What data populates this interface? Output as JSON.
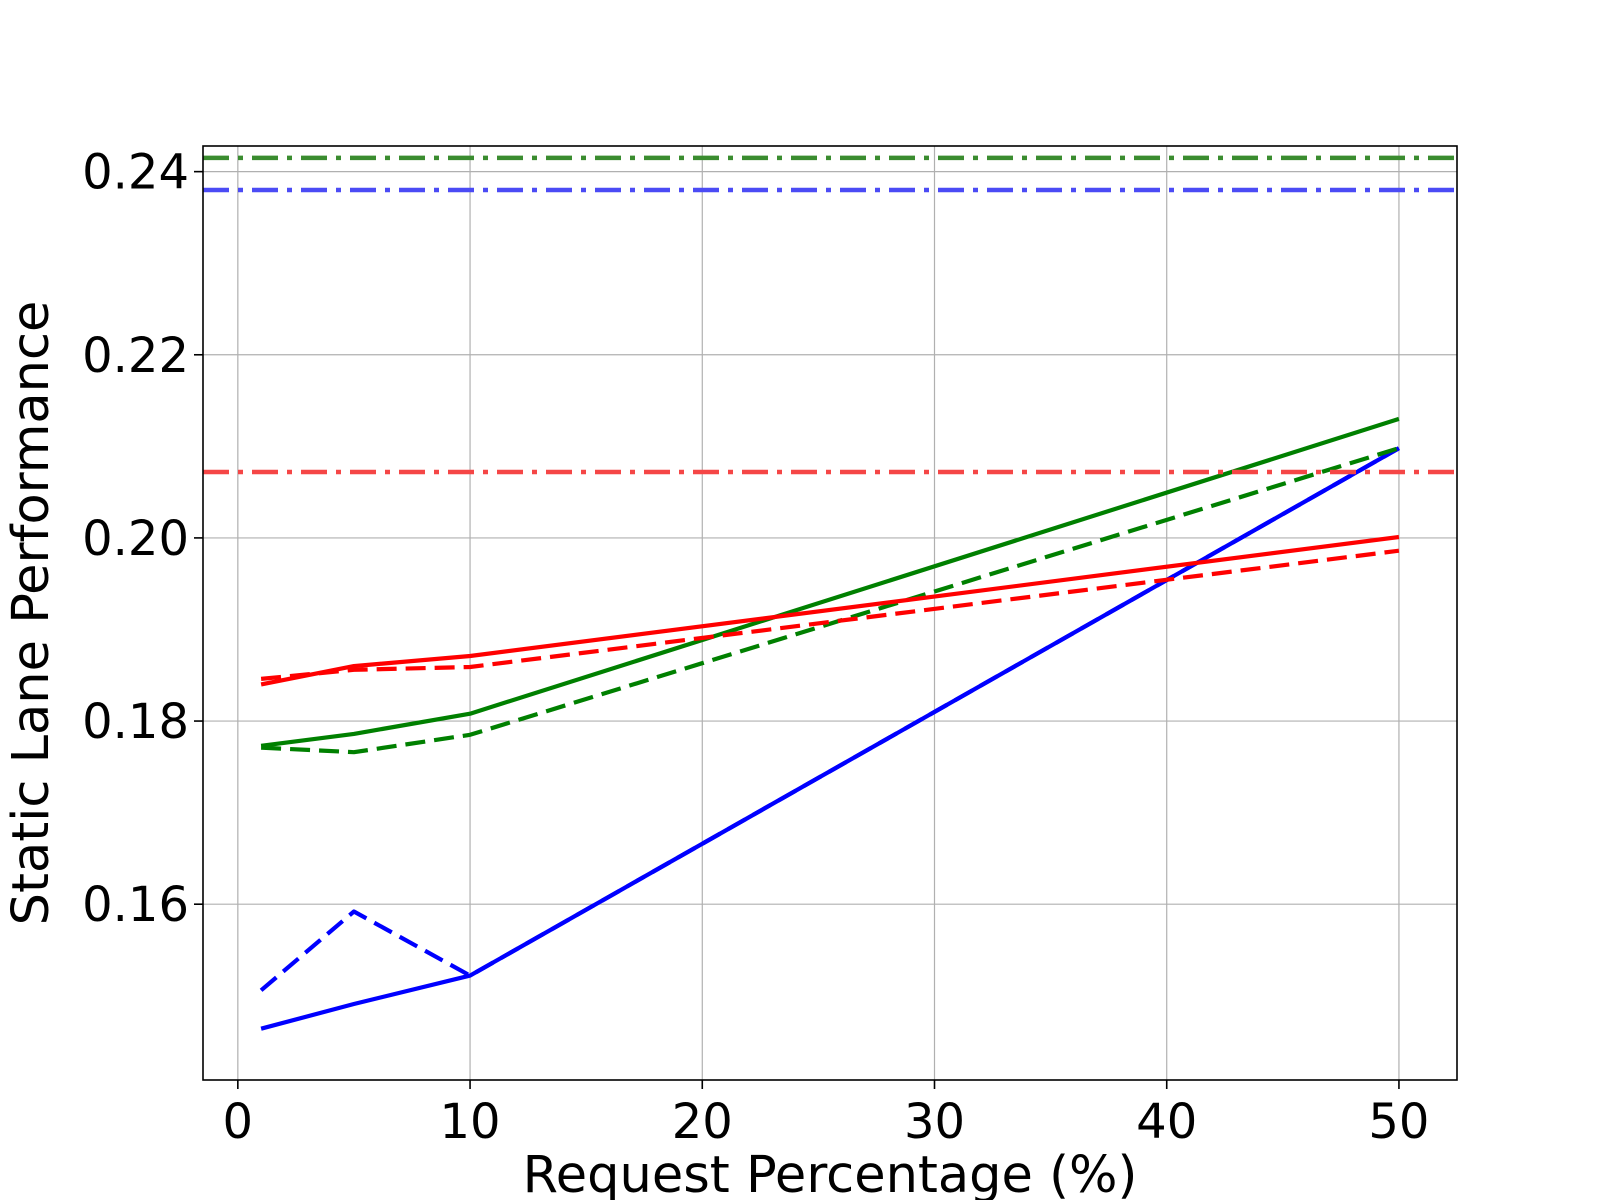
{
  "chart_data": {
    "type": "line",
    "xlabel": "Request Percentage (%)",
    "ylabel": "Static Lane Performance",
    "xlim": [
      -1.5,
      52.5
    ],
    "ylim": [
      0.1408,
      0.2428
    ],
    "xticks": [
      0,
      10,
      20,
      30,
      40,
      50
    ],
    "xtick_labels": [
      "0",
      "10",
      "20",
      "30",
      "40",
      "50"
    ],
    "yticks": [
      0.16,
      0.18,
      0.2,
      0.22,
      0.24
    ],
    "ytick_labels": [
      "0.16",
      "0.18",
      "0.20",
      "0.22",
      "0.24"
    ],
    "grid": true,
    "legend": "none",
    "series": [
      {
        "color": "#0000ff",
        "style": "solid",
        "x": [
          1,
          5,
          10,
          50
        ],
        "y": [
          0.1464,
          0.1491,
          0.1522,
          0.2098
        ]
      },
      {
        "color": "#0000ff",
        "style": "dashed",
        "x": [
          1,
          5,
          10,
          50
        ],
        "y": [
          0.1506,
          0.1592,
          0.1522,
          0.2098
        ]
      },
      {
        "color": "#008000",
        "style": "solid",
        "x": [
          1,
          5,
          10,
          50
        ],
        "y": [
          0.1773,
          0.1786,
          0.1808,
          0.213
        ]
      },
      {
        "color": "#008000",
        "style": "dashed",
        "x": [
          1,
          5,
          10,
          50
        ],
        "y": [
          0.1771,
          0.1766,
          0.1785,
          0.2098
        ]
      },
      {
        "color": "#ff0000",
        "style": "solid",
        "x": [
          1,
          5,
          10,
          50
        ],
        "y": [
          0.184,
          0.186,
          0.1871,
          0.2001
        ]
      },
      {
        "color": "#ff0000",
        "style": "dashed",
        "x": [
          1,
          5,
          10,
          50
        ],
        "y": [
          0.1846,
          0.1856,
          0.1859,
          0.1986
        ]
      },
      {
        "color": "#3a8c2f",
        "style": "dashdot",
        "hline": 0.2415
      },
      {
        "color": "#4b4bf5",
        "style": "dashdot",
        "hline": 0.238
      },
      {
        "color": "#f54646",
        "style": "dashdot",
        "hline": 0.2072
      }
    ]
  }
}
